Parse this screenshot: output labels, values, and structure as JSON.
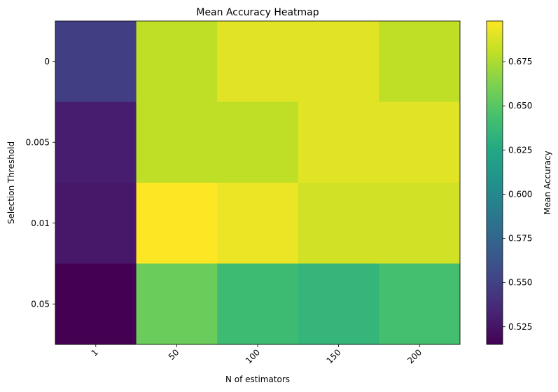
{
  "chart_data": {
    "type": "heatmap",
    "title": "Mean Accuracy Heatmap",
    "xlabel": "N of estimators",
    "ylabel": "Selection Threshold",
    "x_categories": [
      "1",
      "50",
      "100",
      "150",
      "200"
    ],
    "y_categories": [
      "0",
      "0.005",
      "0.01",
      "0.05"
    ],
    "values": [
      [
        0.548,
        0.68,
        0.69,
        0.69,
        0.68
      ],
      [
        0.53,
        0.68,
        0.68,
        0.69,
        0.69
      ],
      [
        0.527,
        0.698,
        0.693,
        0.685,
        0.685
      ],
      [
        0.515,
        0.656,
        0.64,
        0.635,
        0.643
      ]
    ],
    "colorbar": {
      "label": "Mean Accuracy",
      "range": [
        0.515,
        0.698
      ],
      "ticks": [
        "0.525",
        "0.550",
        "0.575",
        "0.600",
        "0.625",
        "0.650",
        "0.675"
      ],
      "colormap": "viridis"
    },
    "grid": false
  }
}
